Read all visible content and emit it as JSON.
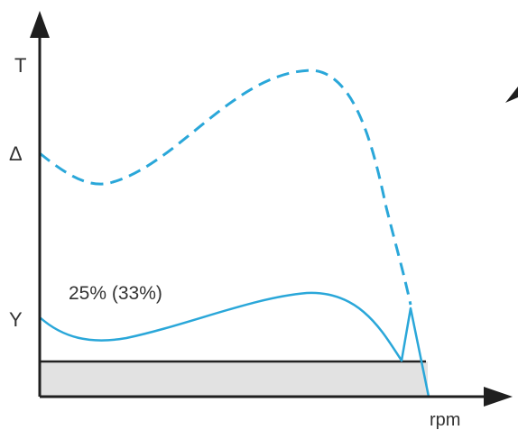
{
  "labels": {
    "y_axis": "T",
    "x_axis": "rpm",
    "delta_marker": "Δ",
    "y_marker": "Y",
    "percent_annotation": "25% (33%)"
  },
  "colors": {
    "curve": "#2aa7d9",
    "axis": "#1f1f1f",
    "band_fill": "#e2e2e2",
    "band_line": "#222222",
    "text": "#333333"
  },
  "curves": {
    "upper": {
      "style": "dashed"
    },
    "lower": {
      "style": "solid"
    }
  }
}
